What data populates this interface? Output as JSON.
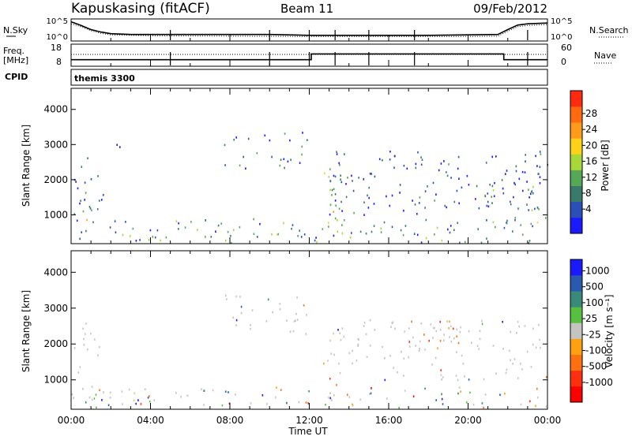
{
  "header": {
    "station": "Kapuskasing (fitACF)",
    "beam": "Beam 11",
    "date": "09/Feb/2012"
  },
  "colors": {
    "power_scale": [
      "#1a1aff",
      "#2a4fb8",
      "#3a7a6a",
      "#55a855",
      "#a8d838",
      "#ffd21a",
      "#ff9a1a",
      "#ff6a10",
      "#ff2a10"
    ],
    "velocity_scale": [
      "#1a1aff",
      "#2a5ab0",
      "#3a8a7a",
      "#58c040",
      "#c4c4c0",
      "#ffa010",
      "#ff7010",
      "#ff3010",
      "#ff0000"
    ],
    "ground_scatter": "#c4c4c0"
  },
  "chart_data": [
    {
      "type": "line",
      "panel": "noise",
      "left_label": "N.Sky",
      "right_label": "N.Search",
      "left_ticks": [
        "10^5",
        "10^0"
      ],
      "right_ticks": [
        "10^5",
        "10^0"
      ],
      "x_ticks": [
        "00:00",
        "04:00",
        "08:00",
        "12:00",
        "16:00",
        "20:00",
        "00:00"
      ],
      "series": [
        {
          "name": "N.Sky",
          "style": "solid",
          "x": [
            0,
            0.5,
            1,
            1.5,
            2,
            3,
            4,
            6,
            8,
            10,
            12,
            14,
            16,
            18,
            20,
            21.5,
            22,
            22.5,
            23,
            24
          ],
          "y": [
            4.5,
            3.6,
            2.6,
            2.0,
            1.6,
            1.4,
            1.4,
            1.4,
            1.4,
            1.4,
            1.2,
            1.2,
            1.2,
            1.2,
            1.3,
            1.4,
            2.6,
            3.7,
            4.0,
            4.2
          ]
        },
        {
          "name": "N.Search",
          "style": "dotted",
          "x": [
            0,
            0.5,
            1,
            1.5,
            2,
            4,
            8,
            12,
            16,
            20,
            21.5,
            22,
            22.5,
            23,
            24
          ],
          "y": [
            4.0,
            3.3,
            2.3,
            1.7,
            1.3,
            1.1,
            1.0,
            0.9,
            0.9,
            0.9,
            1.0,
            2.2,
            3.3,
            3.6,
            3.8
          ]
        }
      ],
      "ylim": [
        0,
        5
      ],
      "xlim": [
        0,
        24
      ]
    },
    {
      "type": "line",
      "panel": "frequency",
      "left_label": "Freq. [MHz]",
      "right_label": "Nave",
      "left_ticks": [
        "18",
        "8"
      ],
      "right_ticks": [
        "60",
        "0"
      ],
      "series": [
        {
          "name": "Freq.",
          "style": "solid",
          "x": [
            0,
            12.1,
            12.1,
            21.8,
            21.8,
            24
          ],
          "y": [
            10.8,
            10.8,
            13.6,
            13.6,
            10.8,
            10.8
          ]
        },
        {
          "name": "Nave",
          "style": "dotted",
          "x": [
            0,
            24
          ],
          "y": [
            13.4,
            13.4
          ]
        }
      ],
      "ylim": [
        8,
        18
      ],
      "xlim": [
        0,
        24
      ]
    },
    {
      "type": "heatmap",
      "panel": "power",
      "cpid_label": "CPID",
      "cpid_text": "themis 3300",
      "ylabel": "Slant Range [km]",
      "y_ticks": [
        1000,
        2000,
        3000,
        4000
      ],
      "ylim": [
        180,
        4600
      ],
      "xlim": [
        0,
        24
      ],
      "colorbar_label": "Power [dB]",
      "colorbar_ticks": [
        "28",
        "24",
        "20",
        "16",
        "12",
        "8",
        "4"
      ],
      "colorbar_range": [
        0,
        30
      ],
      "echo_regions": [
        {
          "t": [
            0.0,
            1.6
          ],
          "r": [
            500,
            2700
          ],
          "level": 0.15
        },
        {
          "t": [
            0.6,
            1.1
          ],
          "r": [
            700,
            2100
          ],
          "level": 0.45
        },
        {
          "t": [
            2.0,
            2.6
          ],
          "r": [
            2750,
            3050
          ],
          "level": 0.1
        },
        {
          "t": [
            7.6,
            11.9
          ],
          "r": [
            2300,
            3400
          ],
          "level": 0.15
        },
        {
          "t": [
            12.7,
            13.6
          ],
          "r": [
            500,
            2400
          ],
          "level": 0.55
        },
        {
          "t": [
            13.0,
            24.0
          ],
          "r": [
            1000,
            2900
          ],
          "level": 0.12
        },
        {
          "t": [
            20.8,
            24.0
          ],
          "r": [
            700,
            1900
          ],
          "level": 0.35
        },
        {
          "t": [
            0.0,
            24.0
          ],
          "r": [
            200,
            900
          ],
          "level": 0.3
        }
      ]
    },
    {
      "type": "heatmap",
      "panel": "velocity",
      "ylabel": "Slant Range [km]",
      "xlabel": "Time UT",
      "y_ticks": [
        1000,
        2000,
        3000,
        4000
      ],
      "x_ticks": [
        "00:00",
        "04:00",
        "08:00",
        "12:00",
        "16:00",
        "20:00",
        "00:00"
      ],
      "ylim": [
        180,
        4600
      ],
      "xlim": [
        0,
        24
      ],
      "colorbar_label": "Velocity [m s⁻¹]",
      "colorbar_ticks": [
        "1000",
        "500",
        "100",
        "25",
        "-25",
        "-100",
        "-500",
        "-1000"
      ],
      "echo_regions": [
        {
          "t": [
            0.0,
            1.6
          ],
          "r": [
            500,
            2700
          ],
          "kind": "ground"
        },
        {
          "t": [
            7.6,
            11.9
          ],
          "r": [
            2300,
            3400
          ],
          "kind": "ground"
        },
        {
          "t": [
            12.7,
            13.4
          ],
          "r": [
            500,
            1600
          ],
          "kind": "neg"
        },
        {
          "t": [
            13.0,
            24.0
          ],
          "r": [
            1000,
            2700
          ],
          "kind": "ground"
        },
        {
          "t": [
            16.8,
            19.5
          ],
          "r": [
            1900,
            2700
          ],
          "kind": "neg"
        },
        {
          "t": [
            0.0,
            24.0
          ],
          "r": [
            200,
            800
          ],
          "kind": "mixed"
        }
      ]
    }
  ]
}
